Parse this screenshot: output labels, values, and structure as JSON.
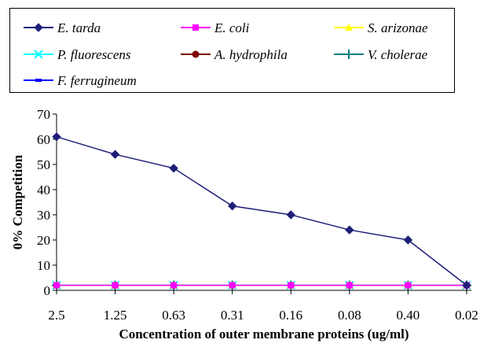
{
  "chart_data": {
    "type": "line",
    "title": "",
    "xlabel": "Concentration of outer membrane proteins (ug/ml)",
    "ylabel": "0% Competition",
    "categories": [
      "2.5",
      "1.25",
      "0.63",
      "0.31",
      "0.16",
      "0.08",
      "0.40",
      "0.02"
    ],
    "ylim": [
      0,
      70
    ],
    "yticks": [
      "0",
      "10",
      "20",
      "30",
      "40",
      "50",
      "60",
      "70"
    ],
    "grid": false,
    "legend_position": "top",
    "series": [
      {
        "name": "E. tarda",
        "color": "#1f1f7a",
        "marker": "diamond",
        "values": [
          61,
          54,
          48.5,
          33.5,
          30,
          24,
          20,
          2
        ]
      },
      {
        "name": "E. coli",
        "color": "#ff00ff",
        "marker": "square",
        "values": [
          2,
          2,
          2,
          2,
          2,
          2,
          2,
          2
        ]
      },
      {
        "name": "S. arizonae",
        "color": "#ffff00",
        "marker": "triangle",
        "values": [
          2,
          2,
          2,
          2,
          2,
          2,
          2,
          2
        ]
      },
      {
        "name": "P. fluorescens",
        "color": "#00ffff",
        "marker": "x",
        "values": [
          2,
          2,
          2,
          2,
          2,
          2,
          2,
          2
        ]
      },
      {
        "name": "A. hydrophila",
        "color": "#800000",
        "marker": "circle",
        "values": [
          2,
          2,
          2,
          2,
          2,
          2,
          2,
          2
        ]
      },
      {
        "name": "V. cholerae",
        "color": "#008080",
        "marker": "plus",
        "values": [
          2,
          2,
          2,
          2,
          2,
          2,
          2,
          2
        ]
      },
      {
        "name": "F. ferrugineum",
        "color": "#0000ff",
        "marker": "dash",
        "values": [
          2,
          2,
          2,
          2,
          2,
          2,
          2,
          2
        ]
      }
    ]
  }
}
